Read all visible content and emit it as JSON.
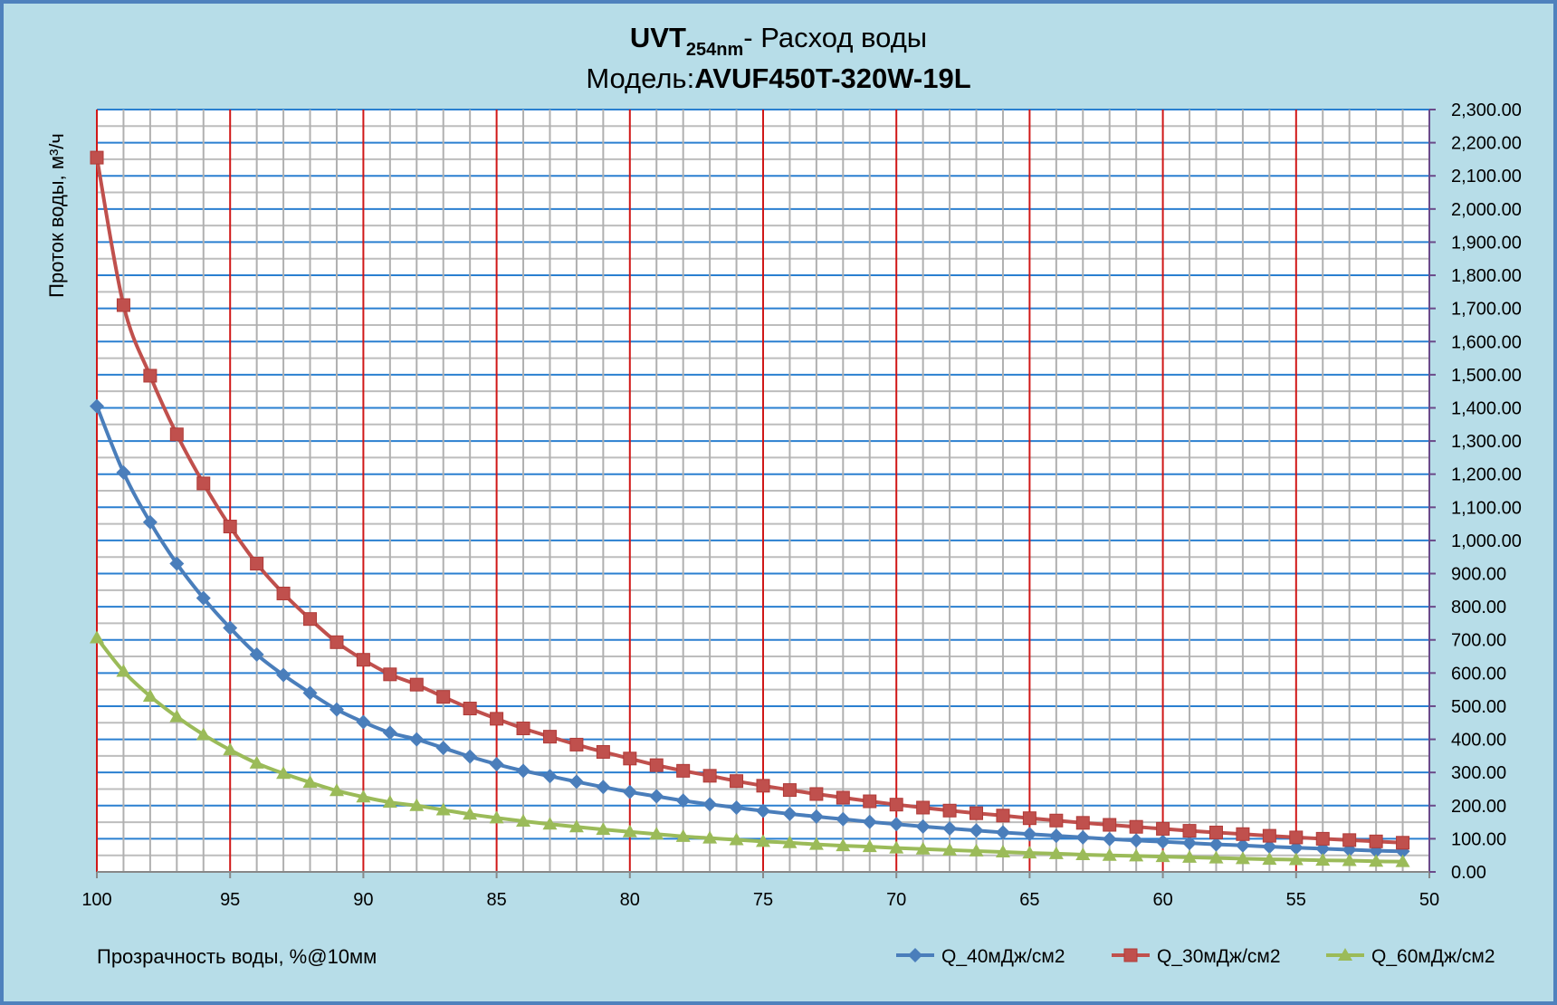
{
  "chart_data": {
    "type": "line",
    "title": {
      "line1_bold": "UVT",
      "line1_sub": "254nm",
      "line1_rest": "- Расход воды",
      "line2_prefix": "Модель:",
      "line2_bold": "AVUF450T-320W-19L"
    },
    "xlabel": "Прозрачность воды, %@10мм",
    "ylabel": "Проток воды, м³/ч",
    "xlim": [
      100,
      50
    ],
    "ylim": [
      0,
      2300
    ],
    "x_reversed": true,
    "y_axis_side": "right",
    "x_ticks": [
      "100",
      "95",
      "90",
      "85",
      "80",
      "75",
      "70",
      "65",
      "60",
      "55",
      "50"
    ],
    "y_ticks": [
      "0.00",
      "100.00",
      "200.00",
      "300.00",
      "400.00",
      "500.00",
      "600.00",
      "700.00",
      "800.00",
      "900.00",
      "1,000.00",
      "1,100.00",
      "1,200.00",
      "1,300.00",
      "1,400.00",
      "1,500.00",
      "1,600.00",
      "1,700.00",
      "1,800.00",
      "1,900.00",
      "2,000.00",
      "2,100.00",
      "2,200.00",
      "2,300.00"
    ],
    "grid": {
      "major_y_step": 100,
      "minor_y_step": 50,
      "x_step": 1,
      "x_major_step": 5
    },
    "legend_position": "bottom-right",
    "x": [
      100,
      99,
      98,
      97,
      96,
      95,
      94,
      93,
      92,
      91,
      90,
      89,
      88,
      87,
      86,
      85,
      84,
      83,
      82,
      81,
      80,
      79,
      78,
      77,
      76,
      75,
      74,
      73,
      72,
      71,
      70,
      69,
      68,
      67,
      66,
      65,
      64,
      63,
      62,
      61,
      60,
      59,
      58,
      57,
      56,
      55,
      54,
      53,
      52,
      51
    ],
    "series": [
      {
        "name": "Q_40мДж/см2",
        "color": "#4a7ebb",
        "marker": "diamond",
        "values": [
          1405,
          1205,
          1055,
          930,
          826,
          736,
          656,
          594,
          540,
          490,
          452,
          420,
          400,
          374,
          348,
          325,
          305,
          289,
          272,
          256,
          241,
          228,
          215,
          204,
          194,
          184,
          175,
          167,
          159,
          151,
          144,
          137,
          131,
          125,
          119,
          114,
          109,
          104,
          99,
          95,
          91,
          87,
          83,
          80,
          76,
          73,
          70,
          67,
          64,
          62
        ]
      },
      {
        "name": "Q_30мДж/см2",
        "color": "#c0504d",
        "marker": "square",
        "values": [
          2155,
          1710,
          1497,
          1320,
          1172,
          1042,
          930,
          840,
          763,
          693,
          640,
          596,
          565,
          528,
          493,
          462,
          433,
          408,
          384,
          362,
          342,
          322,
          305,
          290,
          274,
          260,
          247,
          235,
          224,
          213,
          203,
          194,
          185,
          177,
          170,
          162,
          155,
          148,
          142,
          136,
          130,
          124,
          119,
          114,
          109,
          104,
          100,
          96,
          92,
          88
        ]
      },
      {
        "name": "Q_60мДж/см2",
        "color": "#9bbb59",
        "marker": "triangle",
        "values": [
          706,
          605,
          530,
          468,
          414,
          368,
          328,
          297,
          270,
          245,
          226,
          210,
          200,
          187,
          174,
          163,
          153,
          144,
          136,
          128,
          121,
          114,
          107,
          102,
          97,
          92,
          88,
          83,
          79,
          76,
          72,
          69,
          66,
          63,
          60,
          57,
          55,
          52,
          50,
          48,
          46,
          44,
          42,
          40,
          38,
          37,
          35,
          34,
          32,
          31
        ]
      }
    ]
  }
}
